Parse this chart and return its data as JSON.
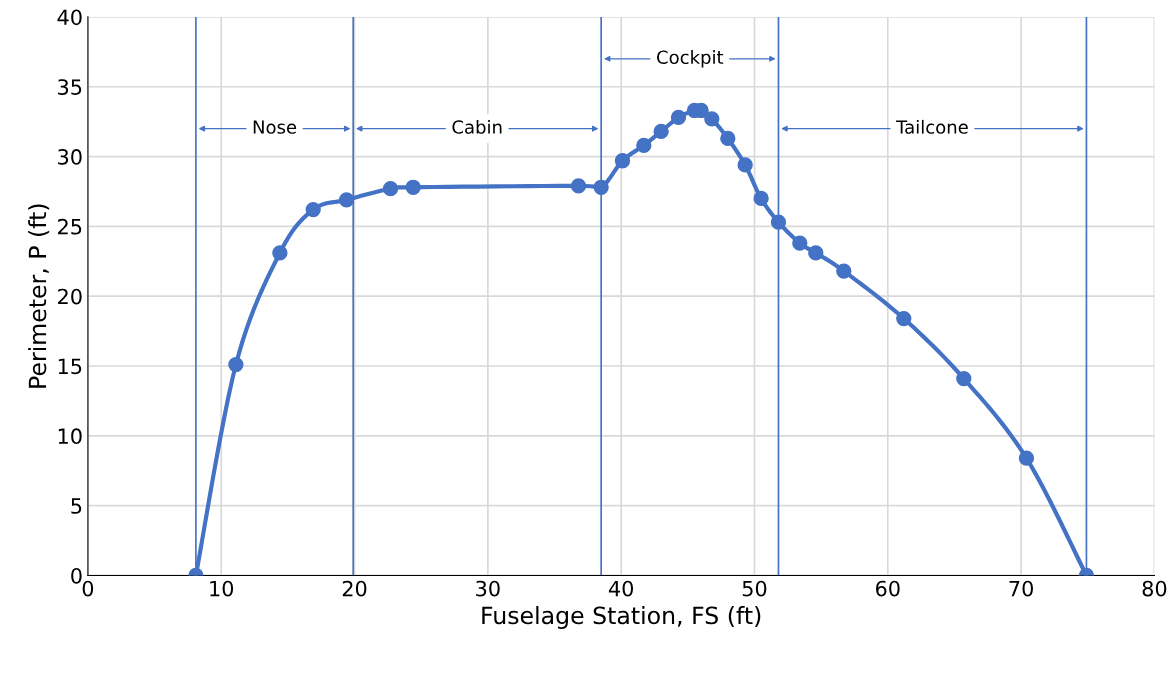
{
  "chart_data": {
    "type": "line",
    "xlabel": "Fuselage Station, FS (ft)",
    "ylabel": "Perimeter, P (ft)",
    "x": [
      8.1,
      11.1,
      14.4,
      16.9,
      19.4,
      22.7,
      24.4,
      36.8,
      38.5,
      40.1,
      41.7,
      43.0,
      44.3,
      45.5,
      46.0,
      46.8,
      48.0,
      49.3,
      50.5,
      51.8,
      53.4,
      54.6,
      56.7,
      61.2,
      65.7,
      70.4,
      74.9
    ],
    "series": [
      {
        "color": "#4472c4",
        "values": [
          0,
          15.1,
          23.1,
          26.2,
          26.9,
          27.7,
          27.8,
          27.9,
          27.8,
          29.7,
          30.8,
          31.8,
          32.8,
          33.3,
          33.3,
          32.7,
          31.3,
          29.4,
          27.0,
          25.3,
          23.8,
          23.1,
          21.8,
          18.4,
          14.1,
          8.4,
          0
        ]
      }
    ],
    "xlim": [
      0,
      80
    ],
    "xticks": [
      0,
      10,
      20,
      30,
      40,
      50,
      60,
      70,
      80
    ],
    "ylim": [
      0,
      40
    ],
    "yticks": [
      0,
      5,
      10,
      15,
      20,
      25,
      30,
      35,
      40
    ],
    "grid": true,
    "marker": "circle",
    "line_style": "solid",
    "ref_lines": [
      {
        "axis": "x",
        "value": 8.1,
        "color": "#4472c4"
      },
      {
        "axis": "x",
        "value": 19.9,
        "color": "#4472c4"
      },
      {
        "axis": "x",
        "value": 38.5,
        "color": "#4472c4"
      },
      {
        "axis": "x",
        "value": 51.8,
        "color": "#4472c4"
      },
      {
        "axis": "x",
        "value": 74.9,
        "color": "#4472c4"
      }
    ],
    "annotations": [
      "Nose",
      "Cabin",
      "Cockpit",
      "Tailcone"
    ]
  }
}
